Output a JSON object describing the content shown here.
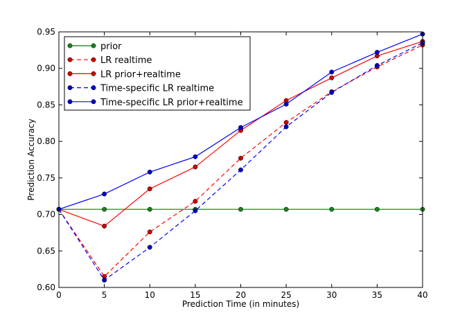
{
  "chart_data": {
    "type": "line",
    "xlabel": "Prediction Time (in minutes)",
    "ylabel": "Prediction Accuracy",
    "xlim": [
      0,
      40
    ],
    "ylim": [
      0.6,
      0.95
    ],
    "xticks": [
      0,
      5,
      10,
      15,
      20,
      25,
      30,
      35,
      40
    ],
    "xtick_labels": [
      "0",
      "5",
      "10",
      "15",
      "20",
      "25",
      "30",
      "35",
      "40"
    ],
    "yticks": [
      0.6,
      0.65,
      0.7,
      0.75,
      0.8,
      0.85,
      0.9,
      0.95
    ],
    "ytick_labels": [
      "0.60",
      "0.65",
      "0.70",
      "0.75",
      "0.80",
      "0.85",
      "0.90",
      "0.95"
    ],
    "grid": false,
    "legend_position": "top-left",
    "x": [
      0,
      5,
      10,
      15,
      20,
      25,
      30,
      35,
      40
    ],
    "series": [
      {
        "name": "prior",
        "color": "#008000",
        "dash": "solid",
        "values": [
          0.707,
          0.707,
          0.707,
          0.707,
          0.707,
          0.707,
          0.707,
          0.707,
          0.707
        ]
      },
      {
        "name": "LR realtime",
        "color": "#ff0000",
        "dash": "dashed",
        "values": [
          0.707,
          0.615,
          0.676,
          0.718,
          0.777,
          0.826,
          0.868,
          0.902,
          0.932
        ]
      },
      {
        "name": "LR prior+realtime",
        "color": "#ff0000",
        "dash": "solid",
        "values": [
          0.707,
          0.684,
          0.735,
          0.765,
          0.815,
          0.856,
          0.887,
          0.917,
          0.937
        ]
      },
      {
        "name": "Time-specific LR realtime",
        "color": "#0000ff",
        "dash": "dashed",
        "values": [
          0.707,
          0.61,
          0.655,
          0.705,
          0.761,
          0.82,
          0.867,
          0.904,
          0.935
        ]
      },
      {
        "name": "Time-specific LR prior+realtime",
        "color": "#0000ff",
        "dash": "solid",
        "values": [
          0.707,
          0.728,
          0.758,
          0.779,
          0.819,
          0.851,
          0.895,
          0.922,
          0.947
        ]
      }
    ]
  }
}
